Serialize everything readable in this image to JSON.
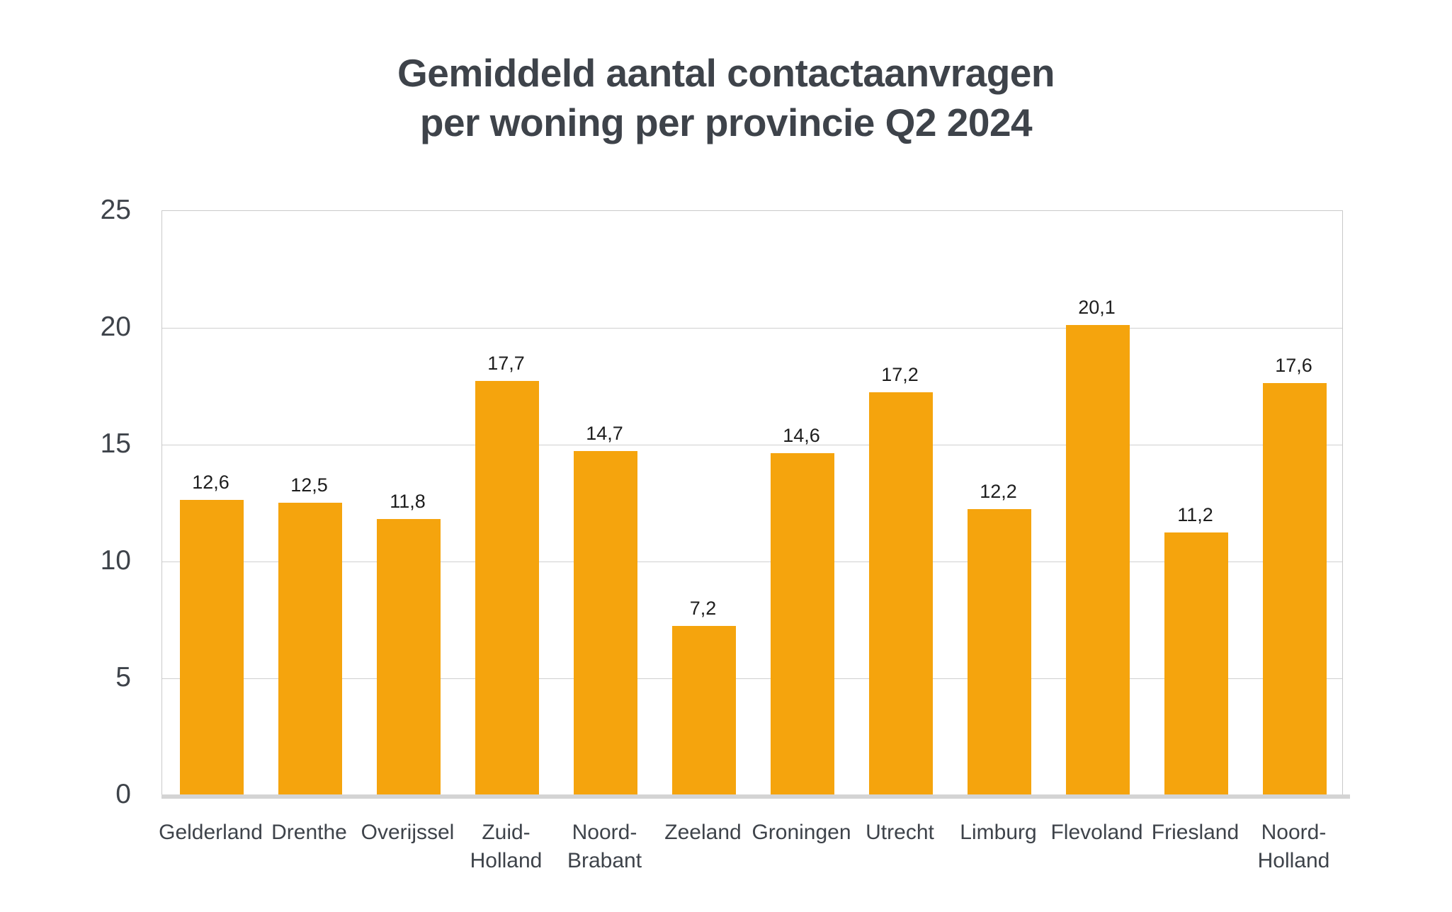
{
  "title": {
    "line1": "Gemiddeld aantal contactaanvragen",
    "line2": "per woning per provincie Q2 2024"
  },
  "chart_data": {
    "type": "bar",
    "title": "Gemiddeld aantal contactaanvragen per woning per provincie Q2 2024",
    "categories": [
      "Gelderland",
      "Drenthe",
      "Overijssel",
      "Zuid-Holland",
      "Noord-Brabant",
      "Zeeland",
      "Groningen",
      "Utrecht",
      "Limburg",
      "Flevoland",
      "Friesland",
      "Noord-Holland"
    ],
    "category_label_lines": [
      [
        "Gelderland"
      ],
      [
        "Drenthe"
      ],
      [
        "Overijssel"
      ],
      [
        "Zuid-",
        "Holland"
      ],
      [
        "Noord-",
        "Brabant"
      ],
      [
        "Zeeland"
      ],
      [
        "Groningen"
      ],
      [
        "Utrecht"
      ],
      [
        "Limburg"
      ],
      [
        "Flevoland"
      ],
      [
        "Friesland"
      ],
      [
        "Noord-",
        "Holland"
      ]
    ],
    "values": [
      12.6,
      12.5,
      11.8,
      17.7,
      14.7,
      7.2,
      14.6,
      17.2,
      12.2,
      20.1,
      11.2,
      17.6
    ],
    "value_labels": [
      "12,6",
      "12,5",
      "11,8",
      "17,7",
      "14,7",
      "7,2",
      "14,6",
      "17,2",
      "12,2",
      "20,1",
      "11,2",
      "17,6"
    ],
    "xlabel": "",
    "ylabel": "",
    "y_ticks": [
      0,
      5,
      10,
      15,
      20,
      25
    ],
    "ylim": [
      0,
      25
    ],
    "grid": true,
    "legend": false
  },
  "colors": {
    "bar": "#F5A40D",
    "gridline": "#cfcfcf",
    "axis_band": "#d4d4d4",
    "text_dark": "#1d1d1d",
    "text_gray": "#3e434a"
  }
}
